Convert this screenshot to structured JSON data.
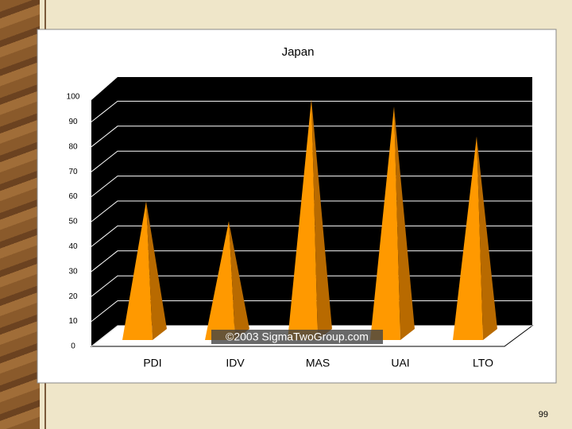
{
  "chart_data": {
    "type": "pyramid",
    "title": "Japan",
    "categories": [
      "PDI",
      "IDV",
      "MAS",
      "UAI",
      "LTO"
    ],
    "values": [
      54,
      46,
      95,
      92,
      80
    ],
    "color": "#ff9900",
    "shade_color": "#b86a00",
    "ylim": [
      0,
      100
    ],
    "yticks": [
      0,
      10,
      20,
      30,
      40,
      50,
      60,
      70,
      80,
      90,
      100
    ],
    "grid": true,
    "watermark": "©2003 SigmaTwoGroup.com"
  },
  "page_number": "99"
}
